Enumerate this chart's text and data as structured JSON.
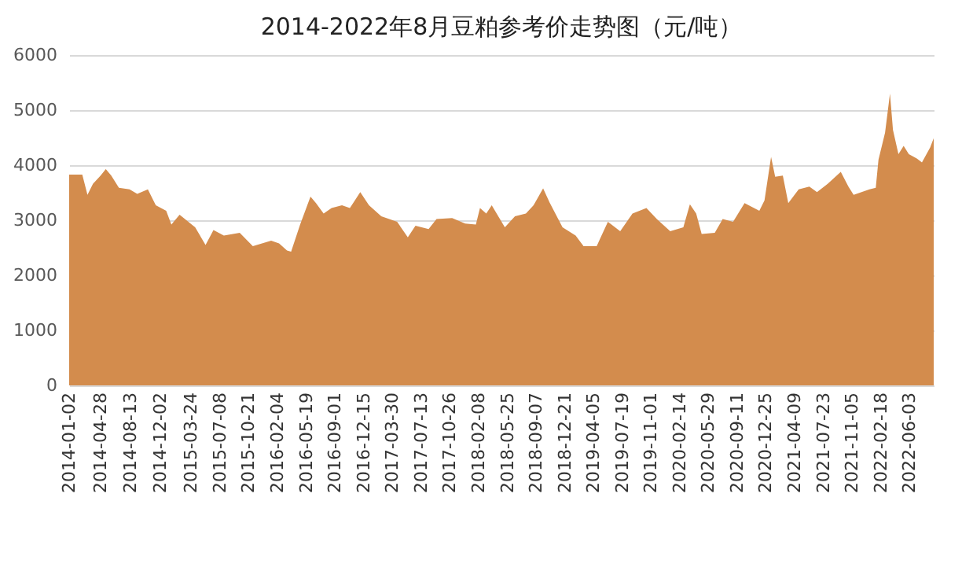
{
  "chart_data": {
    "type": "area",
    "title": "2014-2022年8月豆粕参考价走势图（元/吨）",
    "x": [
      "2014-01-02",
      "2014-02-19",
      "2014-03-10",
      "2014-03-30",
      "2014-04-27",
      "2014-05-16",
      "2014-06-05",
      "2014-07-03",
      "2014-08-11",
      "2014-09-08",
      "2014-10-17",
      "2014-11-15",
      "2014-12-23",
      "2015-01-11",
      "2015-02-10",
      "2015-04-08",
      "2015-05-16",
      "2015-06-14",
      "2015-07-22",
      "2015-09-18",
      "2015-11-05",
      "2016-01-11",
      "2016-02-09",
      "2016-03-09",
      "2016-03-24",
      "2016-04-26",
      "2016-06-03",
      "2016-06-23",
      "2016-07-21",
      "2016-08-19",
      "2016-09-26",
      "2016-10-25",
      "2016-12-02",
      "2017-01-03",
      "2017-02-17",
      "2017-04-16",
      "2017-05-25",
      "2017-06-22",
      "2017-08-09",
      "2017-09-07",
      "2017-11-03",
      "2017-12-21",
      "2018-01-29",
      "2018-02-13",
      "2018-03-08",
      "2018-03-28",
      "2018-05-15",
      "2018-06-21",
      "2018-07-31",
      "2018-08-28",
      "2018-10-02",
      "2018-10-25",
      "2018-12-12",
      "2019-01-29",
      "2019-02-27",
      "2019-04-16",
      "2019-05-27",
      "2019-07-11",
      "2019-08-25",
      "2019-10-15",
      "2019-11-22",
      "2020-01-10",
      "2020-02-27",
      "2020-03-22",
      "2020-04-14",
      "2020-05-04",
      "2020-06-21",
      "2020-07-20",
      "2020-08-27",
      "2020-10-08",
      "2020-12-01",
      "2020-12-20",
      "2021-01-13",
      "2021-01-28",
      "2021-02-25",
      "2021-03-17",
      "2021-04-24",
      "2021-06-02",
      "2021-06-30",
      "2021-08-08",
      "2021-09-25",
      "2021-10-23",
      "2021-11-11",
      "2022-01-08",
      "2022-01-31",
      "2022-02-10",
      "2022-03-06",
      "2022-03-24",
      "2022-04-04",
      "2022-04-24",
      "2022-05-13",
      "2022-06-01",
      "2022-06-30",
      "2022-07-19",
      "2022-08-18",
      "2022-08-31"
    ],
    "series": [
      {
        "color": "#d38c4d",
        "values": [
          3830,
          3830,
          3460,
          3660,
          3810,
          3930,
          3810,
          3590,
          3560,
          3480,
          3560,
          3270,
          3170,
          2920,
          3100,
          2870,
          2550,
          2820,
          2720,
          2770,
          2530,
          2630,
          2580,
          2450,
          2430,
          2920,
          3430,
          3310,
          3120,
          3220,
          3270,
          3220,
          3510,
          3270,
          3070,
          2970,
          2690,
          2900,
          2840,
          3020,
          3040,
          2940,
          2920,
          3220,
          3120,
          3270,
          2870,
          3070,
          3120,
          3270,
          3580,
          3330,
          2870,
          2720,
          2530,
          2530,
          2970,
          2800,
          3120,
          3220,
          3020,
          2800,
          2870,
          3290,
          3120,
          2750,
          2770,
          3020,
          2970,
          3310,
          3170,
          3360,
          4150,
          3790,
          3810,
          3310,
          3560,
          3610,
          3510,
          3660,
          3880,
          3610,
          3460,
          3560,
          3590,
          4100,
          4590,
          5300,
          4640,
          4200,
          4350,
          4200,
          4120,
          4050,
          4320,
          4490
        ]
      }
    ],
    "xlim": [
      "2014-01-02",
      "2022-08-31"
    ],
    "xticks": [
      "2014-01-02",
      "2014-04-28",
      "2014-08-13",
      "2014-12-02",
      "2015-03-24",
      "2015-07-08",
      "2015-10-21",
      "2016-02-04",
      "2016-05-19",
      "2016-09-01",
      "2016-12-15",
      "2017-03-30",
      "2017-07-13",
      "2017-10-26",
      "2018-02-08",
      "2018-05-25",
      "2018-09-07",
      "2018-12-21",
      "2019-04-05",
      "2019-07-19",
      "2019-11-01",
      "2020-02-14",
      "2020-05-29",
      "2020-09-11",
      "2020-12-25",
      "2021-04-09",
      "2021-07-23",
      "2021-11-05",
      "2022-02-18",
      "2022-06-03"
    ],
    "ylim": [
      0,
      6000
    ],
    "yticks": [
      0,
      1000,
      2000,
      3000,
      4000,
      5000,
      6000
    ],
    "grid": "y"
  }
}
